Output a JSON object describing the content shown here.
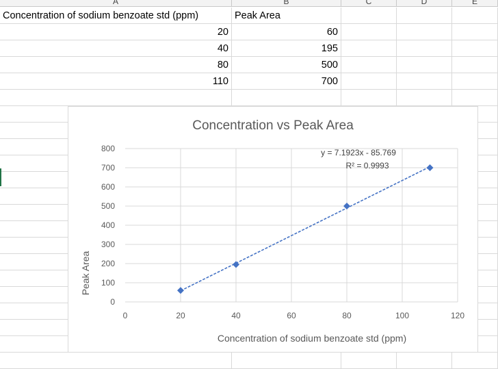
{
  "column_headers": [
    "A",
    "B",
    "C",
    "D",
    "E"
  ],
  "table": {
    "header": {
      "a": "Concentration of sodium benzoate std (ppm)",
      "b": "Peak Area"
    },
    "rows": [
      {
        "a": "20",
        "b": "60"
      },
      {
        "a": "40",
        "b": "195"
      },
      {
        "a": "80",
        "b": "500"
      },
      {
        "a": "110",
        "b": "700"
      }
    ]
  },
  "chart_data": {
    "type": "scatter",
    "title": "Concentration vs Peak Area",
    "xlabel": "Concentration of sodium benzoate std (ppm)",
    "ylabel": "Peak Area",
    "xlim": [
      0,
      120
    ],
    "ylim": [
      0,
      800
    ],
    "x_ticks": [
      0,
      20,
      40,
      60,
      80,
      100,
      120
    ],
    "y_ticks": [
      0,
      100,
      200,
      300,
      400,
      500,
      600,
      700,
      800
    ],
    "grid": true,
    "legend": "none",
    "series": [
      {
        "x": [
          20,
          40,
          80,
          110
        ],
        "y": [
          60,
          195,
          500,
          700
        ],
        "marker": "diamond",
        "color": "#4472c4"
      }
    ],
    "trendline": {
      "type": "linear",
      "slope": 7.1923,
      "intercept": -85.769,
      "color": "#4472c4",
      "style": "dashed",
      "equation": "y = 7.1923x - 85.769",
      "r_squared_label": "R² = 0.9993"
    }
  }
}
